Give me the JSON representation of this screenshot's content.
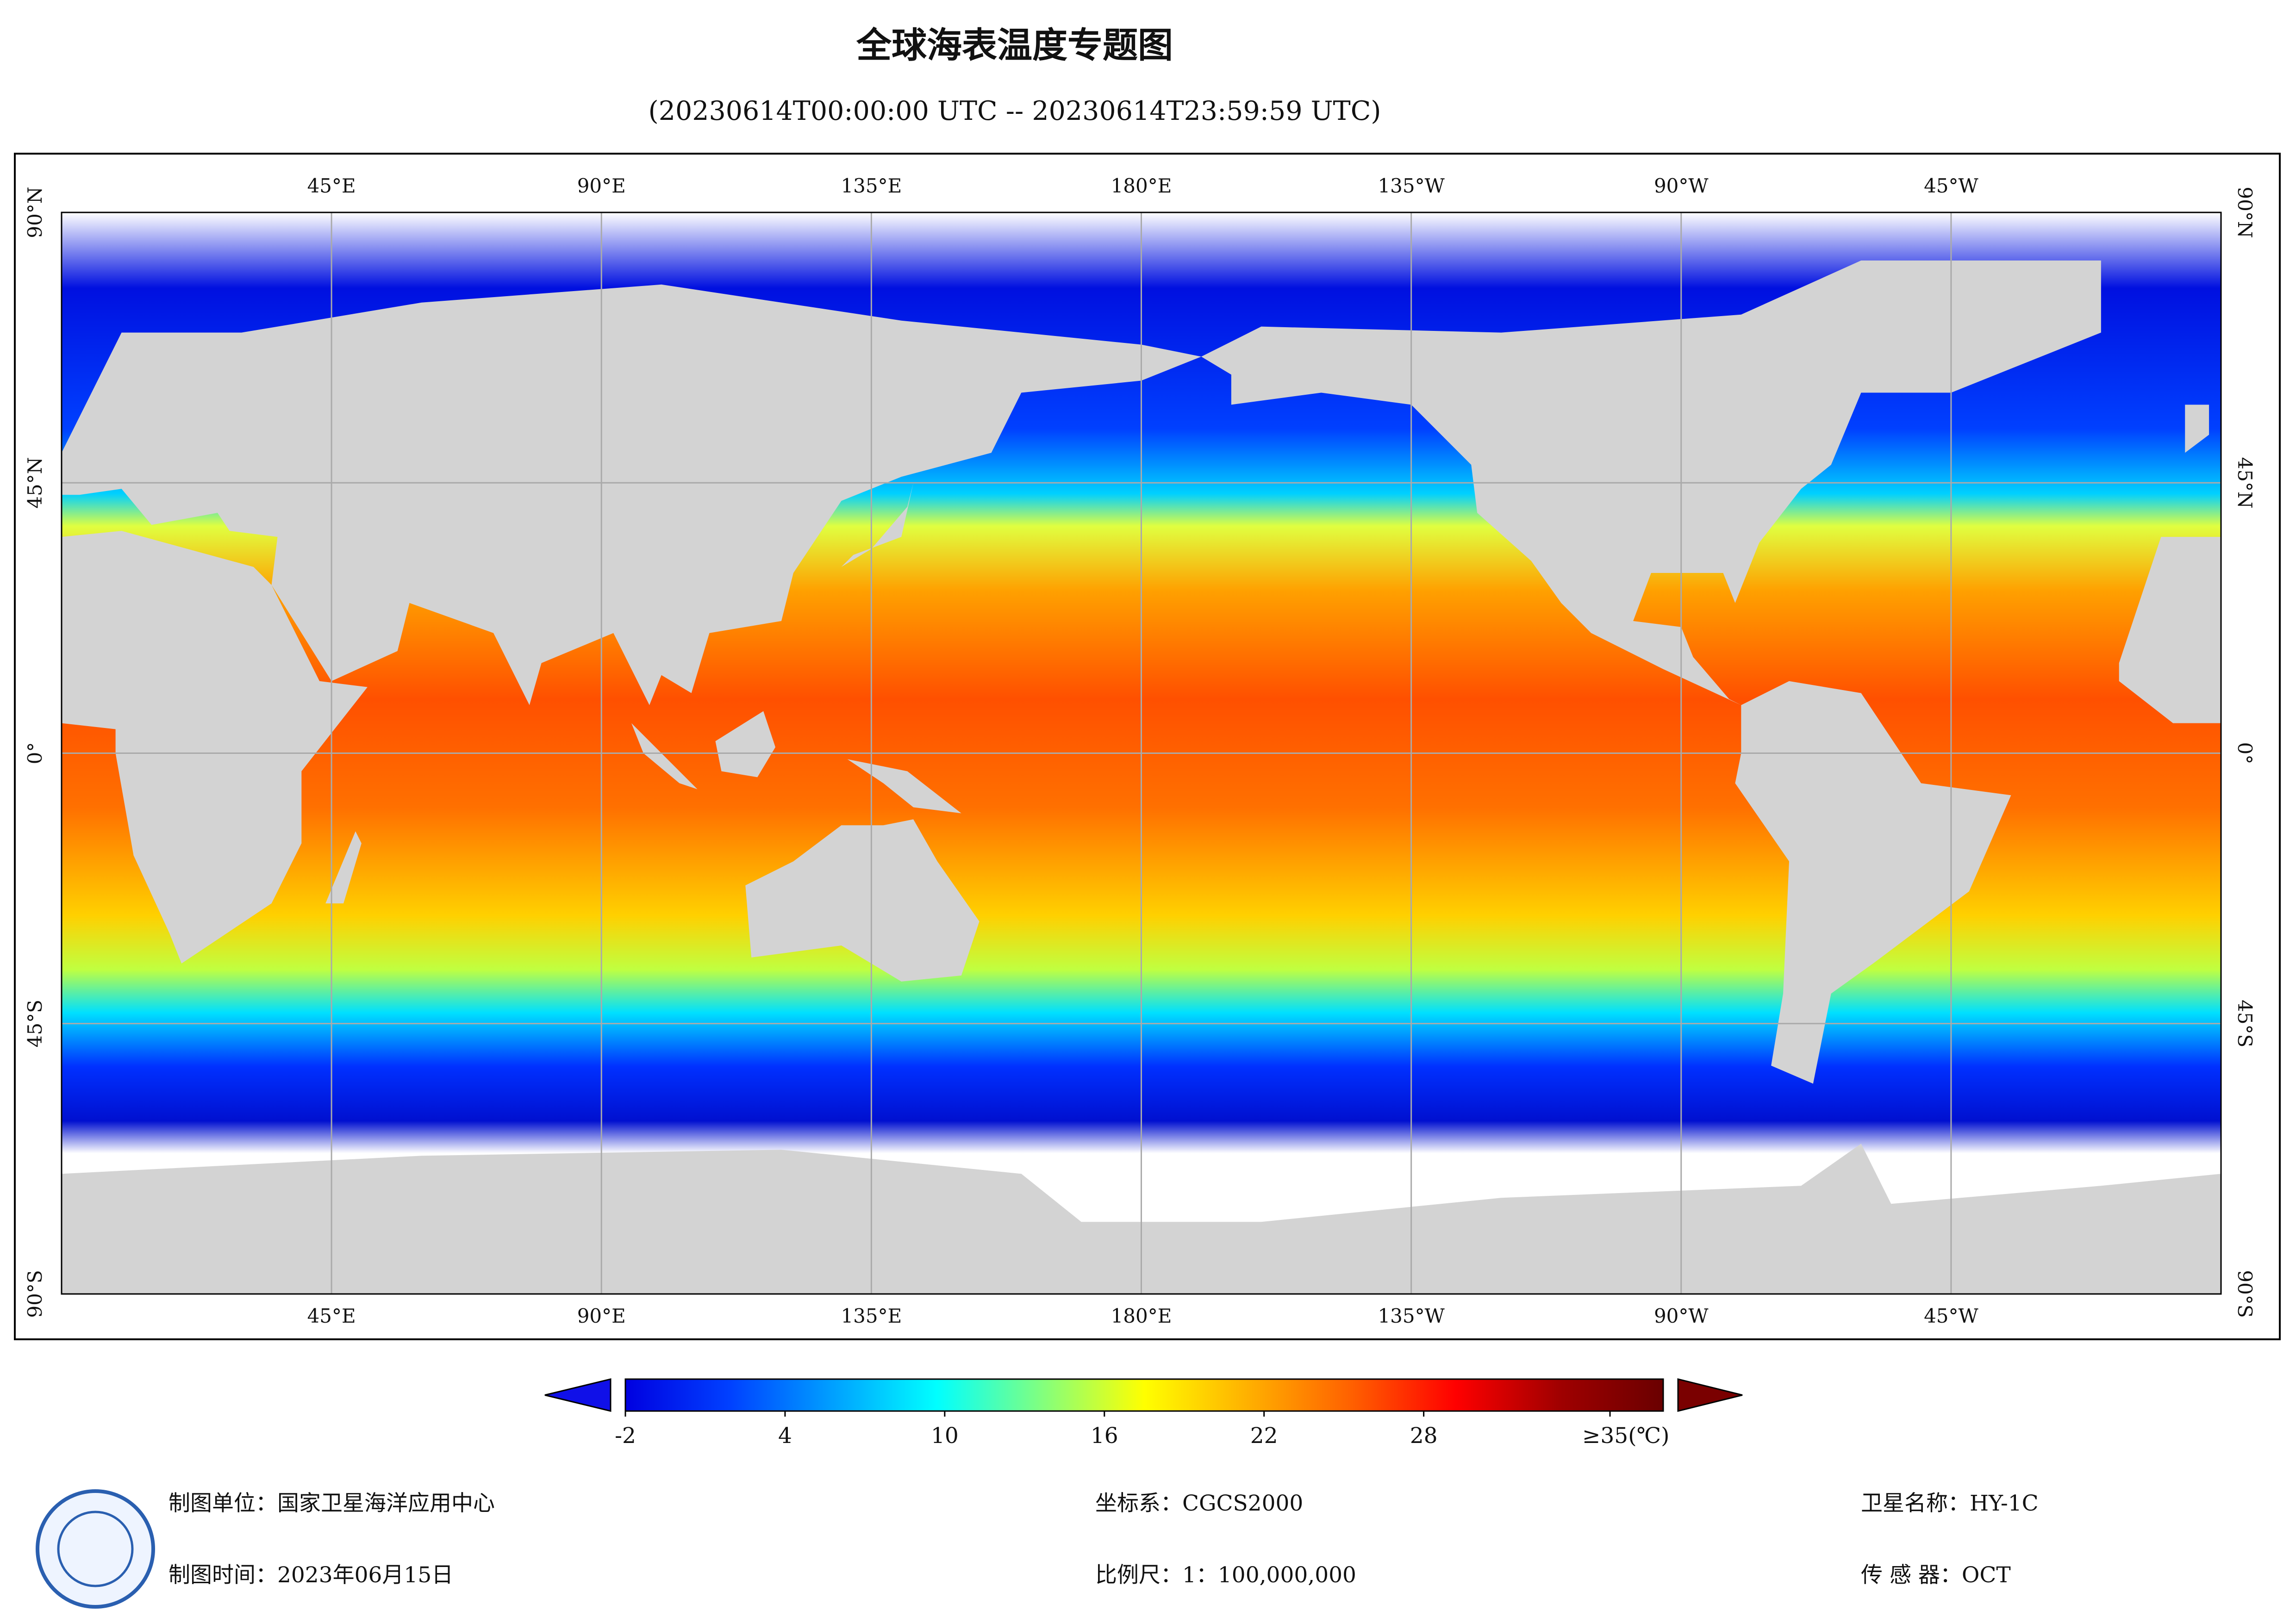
{
  "header": {
    "title": "全球海表温度专题图",
    "subtitle": "(20230614T00:00:00 UTC -- 20230614T23:59:59 UTC)"
  },
  "map": {
    "lon_labels": [
      "45°E",
      "90°E",
      "135°E",
      "180°E",
      "135°W",
      "90°W",
      "45°W"
    ],
    "lat_labels": [
      "90°N",
      "45°N",
      "0°",
      "45°S",
      "90°S"
    ]
  },
  "colorbar": {
    "lim": [
      -2,
      37
    ],
    "ticks": [
      -2,
      4,
      10,
      16,
      22,
      28,
      {
        "value": 35,
        "label": "≥35(℃)"
      }
    ],
    "colors": [
      "#0000e0",
      "#0040ff",
      "#00a0ff",
      "#00ffff",
      "#80ff80",
      "#ffff00",
      "#ffb000",
      "#ff6000",
      "#ff0000",
      "#a00000",
      "#6a0000"
    ],
    "under_color": "#1010e8",
    "over_color": "#7a0000"
  },
  "footer": {
    "unit": "制图单位：国家卫星海洋应用中心",
    "date": "制图时间：2023年06月15日",
    "crs": "坐标系：CGCS2000",
    "scale": "比例尺：1：100,000,000",
    "satellite": "卫星名称：HY-1C",
    "sensor": "传 感 器：OCT"
  }
}
